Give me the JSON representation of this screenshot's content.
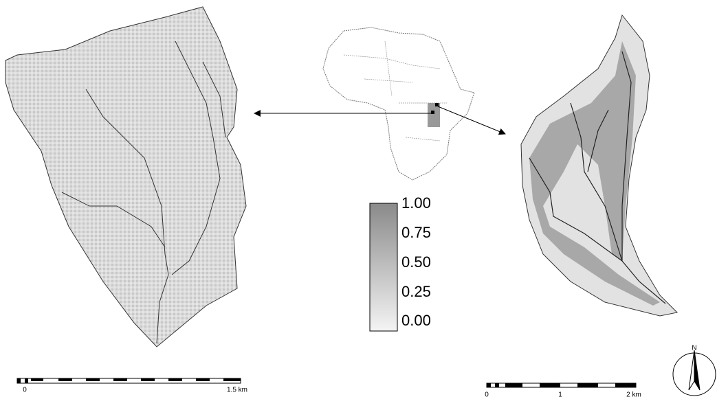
{
  "legend": {
    "labels": [
      "1.00",
      "0.75",
      "0.50",
      "0.25",
      "0.00"
    ]
  },
  "left_scale_bar": {
    "labels": [
      "0",
      "1.5 km"
    ]
  },
  "right_scale_bar": {
    "labels": [
      "0",
      "1",
      "2 km"
    ]
  },
  "north_arrow": {
    "label": "N"
  }
}
